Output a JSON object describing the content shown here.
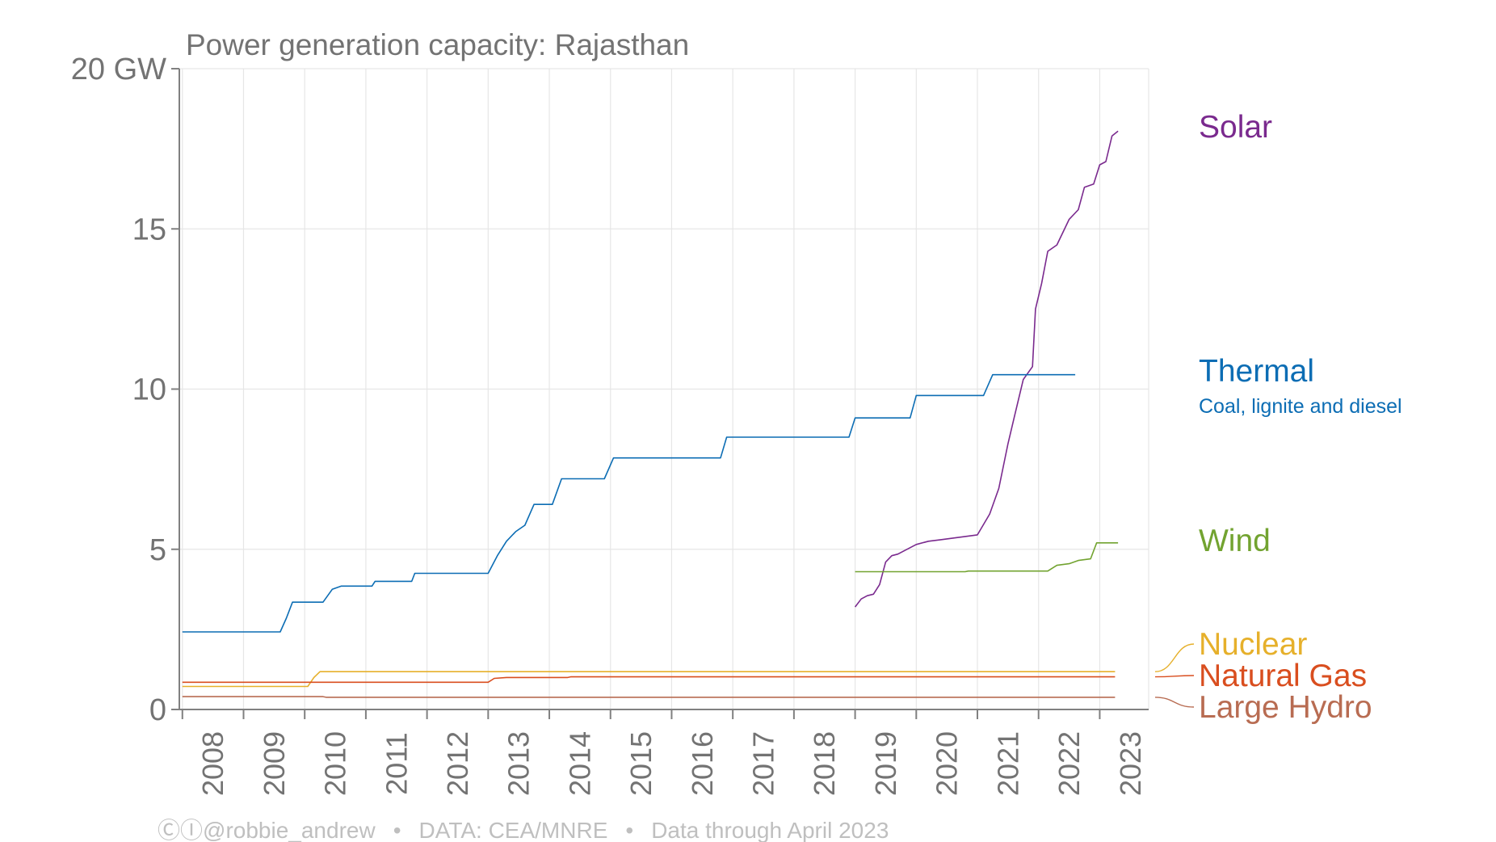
{
  "chart_data": {
    "type": "line",
    "title": "Power generation capacity: Rajasthan",
    "yticks": [
      "20 GW",
      "15",
      "10",
      "5",
      "0"
    ],
    "ylim": [
      0,
      20
    ],
    "xlim": [
      2007.95,
      2023.8
    ],
    "xticks": [
      "2008",
      "2009",
      "2010",
      "2011",
      "2012",
      "2013",
      "2014",
      "2015",
      "2016",
      "2017",
      "2018",
      "2019",
      "2020",
      "2021",
      "2022",
      "2023"
    ],
    "grid": true,
    "legend": "right (direct labels)",
    "series": [
      {
        "name": "Solar",
        "color": "#7a2a8e",
        "points": [
          [
            2019.0,
            3.2
          ],
          [
            2019.1,
            3.45
          ],
          [
            2019.2,
            3.55
          ],
          [
            2019.3,
            3.6
          ],
          [
            2019.4,
            3.9
          ],
          [
            2019.5,
            4.6
          ],
          [
            2019.6,
            4.8
          ],
          [
            2019.7,
            4.85
          ],
          [
            2019.8,
            4.95
          ],
          [
            2020.0,
            5.15
          ],
          [
            2020.2,
            5.25
          ],
          [
            2020.4,
            5.3
          ],
          [
            2020.6,
            5.35
          ],
          [
            2020.8,
            5.4
          ],
          [
            2021.0,
            5.45
          ],
          [
            2021.2,
            6.1
          ],
          [
            2021.35,
            6.9
          ],
          [
            2021.5,
            8.3
          ],
          [
            2021.6,
            9.1
          ],
          [
            2021.75,
            10.3
          ],
          [
            2021.9,
            10.7
          ],
          [
            2021.95,
            12.5
          ],
          [
            2022.05,
            13.3
          ],
          [
            2022.15,
            14.3
          ],
          [
            2022.3,
            14.5
          ],
          [
            2022.5,
            15.3
          ],
          [
            2022.65,
            15.6
          ],
          [
            2022.75,
            16.3
          ],
          [
            2022.9,
            16.4
          ],
          [
            2023.0,
            17.0
          ],
          [
            2023.1,
            17.1
          ],
          [
            2023.2,
            17.9
          ],
          [
            2023.3,
            18.05
          ]
        ]
      },
      {
        "name": "Thermal",
        "subtitle": "Coal, lignite and diesel",
        "color": "#0c6db4",
        "points": [
          [
            2008.0,
            2.42
          ],
          [
            2009.6,
            2.42
          ],
          [
            2009.7,
            2.85
          ],
          [
            2009.8,
            3.35
          ],
          [
            2010.3,
            3.35
          ],
          [
            2010.45,
            3.75
          ],
          [
            2010.6,
            3.85
          ],
          [
            2011.1,
            3.85
          ],
          [
            2011.15,
            4.0
          ],
          [
            2011.75,
            4.0
          ],
          [
            2011.8,
            4.25
          ],
          [
            2013.0,
            4.25
          ],
          [
            2013.15,
            4.8
          ],
          [
            2013.3,
            5.25
          ],
          [
            2013.45,
            5.55
          ],
          [
            2013.6,
            5.75
          ],
          [
            2013.75,
            6.4
          ],
          [
            2014.05,
            6.4
          ],
          [
            2014.2,
            7.2
          ],
          [
            2014.9,
            7.2
          ],
          [
            2015.05,
            7.85
          ],
          [
            2016.8,
            7.85
          ],
          [
            2016.9,
            8.5
          ],
          [
            2018.9,
            8.5
          ],
          [
            2019.0,
            9.1
          ],
          [
            2019.9,
            9.1
          ],
          [
            2020.0,
            9.8
          ],
          [
            2021.1,
            9.8
          ],
          [
            2021.25,
            10.45
          ],
          [
            2022.6,
            10.45
          ]
        ]
      },
      {
        "name": "Wind",
        "color": "#72a330",
        "points": [
          [
            2019.0,
            4.3
          ],
          [
            2020.8,
            4.3
          ],
          [
            2020.85,
            4.32
          ],
          [
            2022.15,
            4.32
          ],
          [
            2022.3,
            4.5
          ],
          [
            2022.5,
            4.55
          ],
          [
            2022.65,
            4.65
          ],
          [
            2022.85,
            4.7
          ],
          [
            2022.95,
            5.2
          ],
          [
            2023.3,
            5.2
          ]
        ]
      },
      {
        "name": "Nuclear",
        "color": "#e6b02b",
        "points": [
          [
            2008.0,
            0.72
          ],
          [
            2010.05,
            0.72
          ],
          [
            2010.15,
            1.0
          ],
          [
            2010.25,
            1.18
          ],
          [
            2023.25,
            1.18
          ]
        ]
      },
      {
        "name": "Natural Gas",
        "color": "#d94e1f",
        "points": [
          [
            2008.0,
            0.85
          ],
          [
            2013.0,
            0.85
          ],
          [
            2013.1,
            0.97
          ],
          [
            2013.3,
            1.0
          ],
          [
            2014.3,
            1.0
          ],
          [
            2014.35,
            1.02
          ],
          [
            2023.25,
            1.02
          ]
        ]
      },
      {
        "name": "Large Hydro",
        "color": "#b86c52",
        "points": [
          [
            2008.0,
            0.4
          ],
          [
            2010.3,
            0.4
          ],
          [
            2010.35,
            0.38
          ],
          [
            2023.25,
            0.38
          ]
        ]
      }
    ]
  },
  "footer": {
    "cc_icons": "ⒸⒾ",
    "author": "@robbie_andrew",
    "separator": "•",
    "source": "DATA: CEA/MNRE",
    "note": "Data through April 2023"
  }
}
